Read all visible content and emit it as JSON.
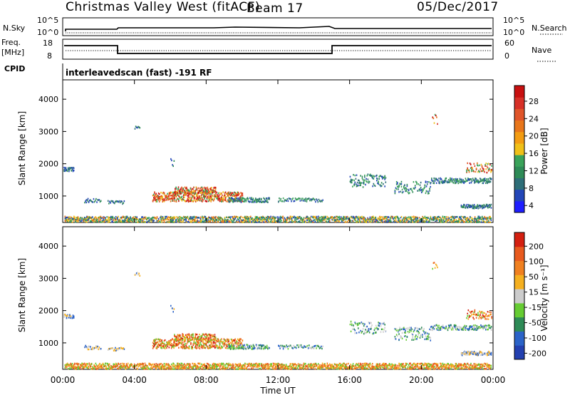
{
  "header": {
    "title": "Christmas Valley West (fitACF)",
    "beam": "Beam 17",
    "date": "05/Dec/2017"
  },
  "top_panels": {
    "nsky_label": "N.Sky",
    "nsky_ticks": [
      "10^5",
      "10^0"
    ],
    "nsearch_label": "N.Search",
    "nsearch_ticks": [
      "10^5",
      "10^0"
    ],
    "freq_label_1": "Freq.",
    "freq_label_2": "[MHz]",
    "freq_ticks": [
      "18",
      "8"
    ],
    "nave_label": "Nave",
    "nave_ticks": [
      "60",
      "0"
    ],
    "cpid_label": "CPID",
    "cpid_value": "interleavedscan (fast) -191 RF"
  },
  "chart_data": [
    {
      "type": "heatmap",
      "name": "power-panel",
      "ylabel": "Slant Range [km]",
      "yticks": [
        "1000",
        "2000",
        "3000",
        "4000"
      ],
      "ylim": [
        180,
        4600
      ],
      "xlim": [
        0,
        24
      ],
      "colorbar_label": "Power [dB]",
      "colorbar_ticks": [
        "28",
        "24",
        "20",
        "16",
        "12",
        "8",
        "4"
      ],
      "colorbar_colors": [
        "#1e1eff",
        "#2346b8",
        "#2e6e78",
        "#2e8b57",
        "#3aa35a",
        "#f0c018",
        "#f39c12",
        "#e8761b",
        "#e0552a",
        "#d73027",
        "#c81010"
      ]
    },
    {
      "type": "heatmap",
      "name": "velocity-panel",
      "ylabel": "Slant Range [km]",
      "yticks": [
        "1000",
        "2000",
        "3000",
        "4000"
      ],
      "ylim": [
        180,
        4600
      ],
      "xlim": [
        0,
        24
      ],
      "xlabel": "Time UT",
      "xticks": [
        "00:00",
        "04:00",
        "08:00",
        "12:00",
        "16:00",
        "20:00",
        "00:00"
      ],
      "colorbar_label": "Velocity [m s⁻¹]",
      "colorbar_ticks": [
        "200",
        "100",
        "50",
        "15",
        "-15",
        "-50",
        "-100",
        "-200"
      ],
      "colorbar_colors": [
        "#2340b0",
        "#2b63c8",
        "#2e8b57",
        "#66cc33",
        "#cccccc",
        "#f5b020",
        "#f08020",
        "#e85a1e",
        "#d42010"
      ]
    }
  ]
}
